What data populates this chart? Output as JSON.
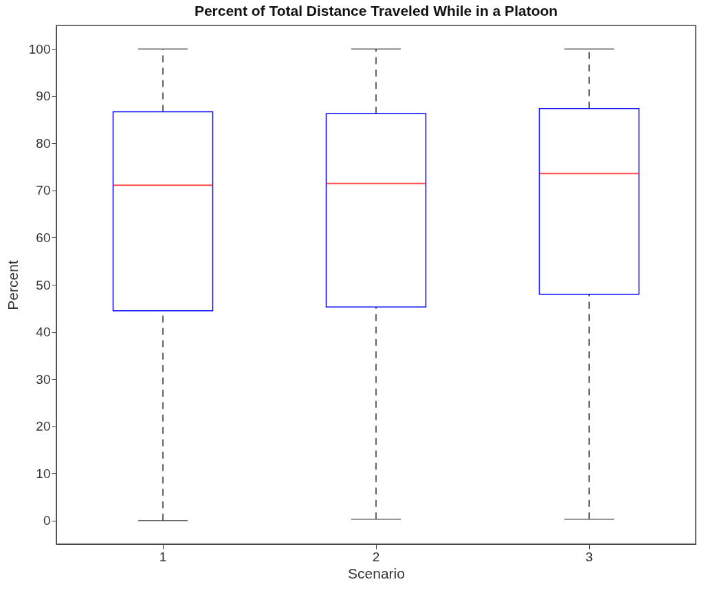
{
  "chart_data": {
    "type": "box",
    "title": "Percent of Total Distance Traveled While in a Platoon",
    "xlabel": "Scenario",
    "ylabel": "Percent",
    "categories": [
      "1",
      "2",
      "3"
    ],
    "boxes": [
      {
        "low": 0,
        "q1": 44.5,
        "median": 71.1,
        "q3": 86.7,
        "high": 100
      },
      {
        "low": 0.3,
        "q1": 45.3,
        "median": 71.5,
        "q3": 86.3,
        "high": 100
      },
      {
        "low": 0.3,
        "q1": 48.0,
        "median": 73.6,
        "q3": 87.4,
        "high": 100
      }
    ],
    "ylim": [
      -5,
      105
    ],
    "yticks": [
      0,
      10,
      20,
      30,
      40,
      50,
      60,
      70,
      80,
      90,
      100
    ],
    "grid": false
  }
}
